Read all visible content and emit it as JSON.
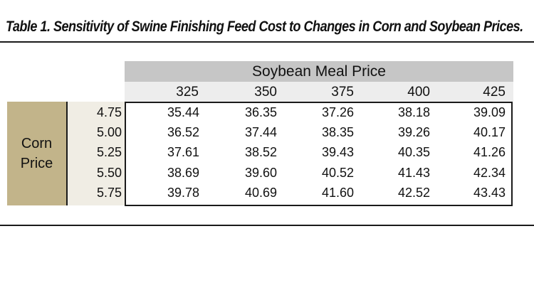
{
  "title": "Table 1.  Sensitivity of Swine Finishing Feed Cost to Changes in Corn and Soybean Prices.",
  "soybean_header": "Soybean Meal Price",
  "soybean_prices": [
    "325",
    "350",
    "375",
    "400",
    "425"
  ],
  "corn_label_line1": "Corn",
  "corn_label_line2": "Price",
  "corn_prices": [
    "4.75",
    "5.00",
    "5.25",
    "5.50",
    "5.75"
  ],
  "rows": [
    [
      "35.44",
      "36.35",
      "37.26",
      "38.18",
      "39.09"
    ],
    [
      "36.52",
      "37.44",
      "38.35",
      "39.26",
      "40.17"
    ],
    [
      "37.61",
      "38.52",
      "39.43",
      "40.35",
      "41.26"
    ],
    [
      "38.69",
      "39.60",
      "40.52",
      "41.43",
      "42.34"
    ],
    [
      "39.78",
      "40.69",
      "41.60",
      "42.52",
      "43.43"
    ]
  ],
  "colors": {
    "soy_header_bg": "#c6c6c6",
    "soy_price_row_bg": "#ededed",
    "corn_label_bg": "#c2b48a",
    "corn_values_bg": "#f0ede4",
    "border": "#1a1a1a"
  }
}
